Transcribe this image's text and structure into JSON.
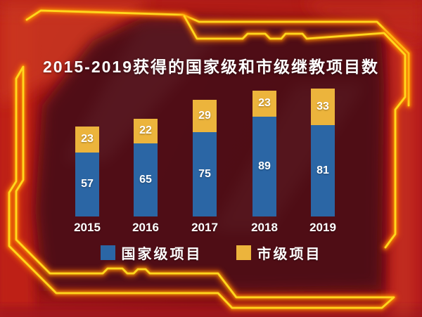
{
  "chart_data": {
    "type": "bar",
    "stacked": true,
    "title": "2015-2019获得的国家级和市级继教项目数",
    "categories": [
      "2015",
      "2016",
      "2017",
      "2018",
      "2019"
    ],
    "series": [
      {
        "name": "国家级项目",
        "color": "#2b66a5",
        "values": [
          57,
          65,
          75,
          89,
          81
        ]
      },
      {
        "name": "市级项目",
        "color": "#ecb43c",
        "values": [
          23,
          22,
          29,
          23,
          33
        ]
      }
    ],
    "value_labels": true,
    "legend_position": "bottom",
    "xlabel": "",
    "ylabel": "",
    "grid": false,
    "axes_shown": false
  },
  "legend": {
    "items": [
      {
        "label": "国家级项目",
        "color": "#2b66a5"
      },
      {
        "label": "市级项目",
        "color": "#ecb43c"
      }
    ]
  },
  "colors": {
    "background_outer": "#a31417",
    "background_panel": "#4d0b13",
    "neon_core": "#ffd71e",
    "neon_glow": "#ff6a00",
    "text": "#ffffff"
  }
}
